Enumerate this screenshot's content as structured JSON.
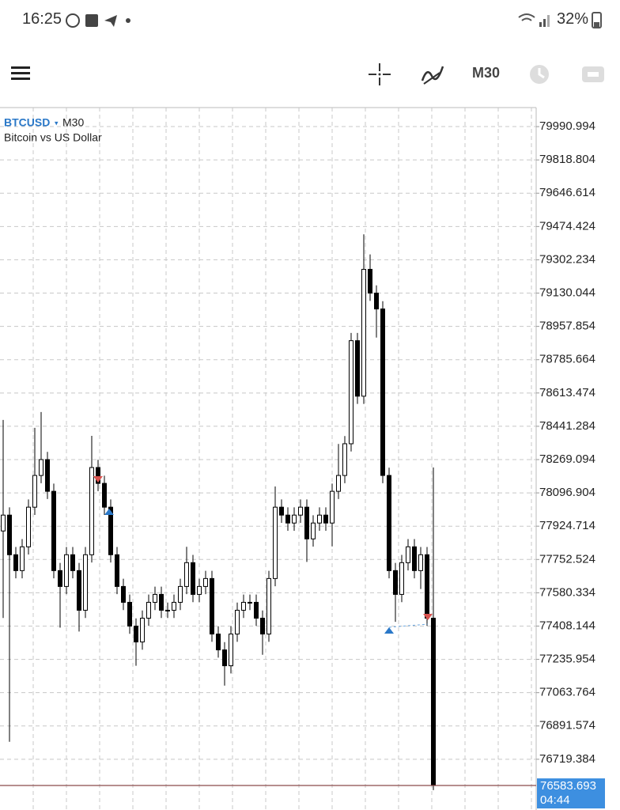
{
  "status_bar": {
    "time": "16:25",
    "battery": "32%"
  },
  "toolbar": {
    "timeframe": "M30"
  },
  "chart_data": {
    "type": "candlestick",
    "symbol": "BTCUSD",
    "timeframe": "M30",
    "description": "Bitcoin vs US Dollar",
    "open": [
      77900,
      77982,
      77777,
      77695,
      77818,
      78023,
      78187,
      78269,
      78105,
      77695,
      77613,
      77777,
      77695,
      77490,
      77777,
      78228,
      78146,
      78023,
      77777,
      77613,
      77531,
      77408,
      77326,
      77449,
      77531,
      77572,
      77490,
      77490,
      77531,
      77613,
      77736,
      77572,
      77613,
      77654,
      77367,
      77285,
      77203,
      77367,
      77490,
      77531,
      77531,
      77449,
      77367,
      77654,
      78023,
      77982,
      77941,
      77982,
      78023,
      77859,
      77941,
      77982,
      77941,
      78105,
      78187,
      78351,
      78884,
      78597,
      79253,
      79130,
      79048,
      78187,
      77695,
      77572,
      77736,
      77818,
      77695,
      77777,
      77449
    ],
    "high": [
      78474,
      78022,
      77817,
      77858,
      78063,
      78433,
      78515,
      78309,
      78145,
      77735,
      77817,
      77817,
      77735,
      77817,
      78392,
      78268,
      78186,
      78063,
      77817,
      77653,
      77571,
      77448,
      77489,
      77571,
      77612,
      77612,
      77530,
      77571,
      77653,
      77818,
      77776,
      77653,
      77694,
      77694,
      77407,
      77325,
      77407,
      77530,
      77571,
      77571,
      77571,
      77489,
      77694,
      78130,
      78063,
      78022,
      78022,
      78063,
      78063,
      77981,
      78022,
      78022,
      78145,
      78350,
      78391,
      78924,
      78924,
      79434,
      79330,
      79170,
      79088,
      78227,
      77735,
      77776,
      77858,
      77858,
      77817,
      77817,
      78228
    ],
    "low": [
      77450,
      76810,
      77655,
      77655,
      77778,
      77983,
      78147,
      78065,
      77655,
      77400,
      77573,
      77655,
      77380,
      77450,
      77737,
      78106,
      77983,
      77737,
      77573,
      77491,
      77368,
      77203,
      77286,
      77409,
      77491,
      77450,
      77450,
      77450,
      77491,
      77573,
      77532,
      77532,
      77573,
      77327,
      77245,
      77100,
      77163,
      77327,
      77450,
      77491,
      77409,
      77260,
      77327,
      77614,
      77942,
      77901,
      77901,
      77942,
      77740,
      77819,
      77901,
      77901,
      77820,
      78065,
      78147,
      78311,
      78557,
      78557,
      79090,
      78900,
      78147,
      77655,
      77430,
      77532,
      77696,
      77655,
      77600,
      77409,
      76560
    ],
    "close": [
      77982,
      77777,
      77695,
      77818,
      78023,
      78187,
      78269,
      78105,
      77695,
      77613,
      77777,
      77695,
      77490,
      77777,
      78228,
      78146,
      78023,
      77777,
      77613,
      77531,
      77408,
      77326,
      77449,
      77531,
      77572,
      77490,
      77490,
      77531,
      77613,
      77736,
      77572,
      77613,
      77654,
      77367,
      77285,
      77203,
      77367,
      77490,
      77531,
      77531,
      77449,
      77367,
      77654,
      78023,
      77982,
      77941,
      77982,
      78023,
      77859,
      77941,
      77982,
      77941,
      78105,
      78187,
      78351,
      78884,
      78597,
      79253,
      79130,
      79048,
      78187,
      77695,
      77572,
      77736,
      77818,
      77695,
      77777,
      77449,
      76583.693
    ],
    "color": "#000000",
    "ylim": [
      76457,
      80089.4
    ],
    "yticks": [
      76719.384,
      76891.574,
      77063.764,
      77235.954,
      77408.144,
      77580.334,
      77752.524,
      77924.714,
      78096.904,
      78269.094,
      78441.284,
      78613.474,
      78785.664,
      78957.854,
      79130.044,
      79302.234,
      79474.424,
      79646.614,
      79818.804,
      79990.994
    ],
    "grid": true,
    "current_price": 76583.693,
    "current_price_color": "#3d8fe0",
    "countdown": "04:44"
  }
}
